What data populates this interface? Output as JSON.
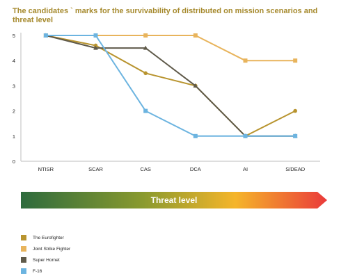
{
  "chart_data": {
    "type": "line",
    "title": "The candidates ` marks for the survivability of distributed on mission scenarios and threat level",
    "categories": [
      "NTISR",
      "SCAR",
      "CAS",
      "DCA",
      "AI",
      "S/DEAD"
    ],
    "ylim": [
      0,
      5
    ],
    "yticks": [
      0,
      1,
      2,
      3,
      4,
      5
    ],
    "grid": false,
    "legend_position": "bottom-left",
    "series": [
      {
        "name": "The Eurofighter",
        "color": "#b8942f",
        "marker": "circle",
        "values": [
          5,
          4.6,
          3.5,
          3,
          1,
          2
        ]
      },
      {
        "name": "Joint Strike Fighter",
        "color": "#e8b45c",
        "marker": "square",
        "values": [
          5,
          5,
          5,
          5,
          4,
          4
        ]
      },
      {
        "name": "Super Hornet",
        "color": "#5f5a4a",
        "marker": "triangle",
        "values": [
          5,
          4.5,
          4.5,
          3,
          1,
          1
        ]
      },
      {
        "name": "F-16",
        "color": "#6cb4e0",
        "marker": "square",
        "values": [
          5,
          5,
          2,
          1,
          1,
          1
        ]
      }
    ]
  },
  "threat_bar": {
    "label": "Threat level",
    "colors": [
      "#2e6b3d",
      "#8a9a2e",
      "#f5b52a",
      "#ea3a3a"
    ]
  }
}
